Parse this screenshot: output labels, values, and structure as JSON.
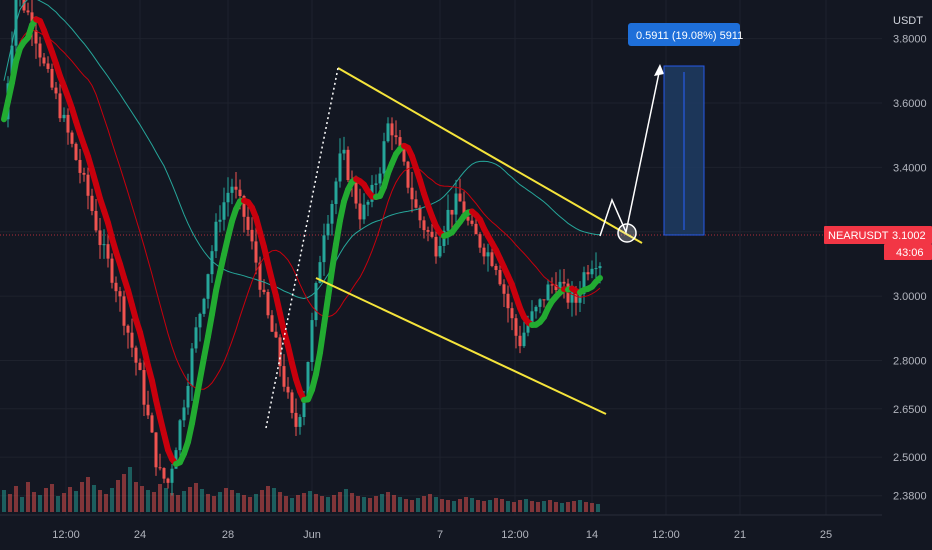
{
  "chart_data": {
    "type": "candlestick",
    "symbol": "NEARUSDT",
    "axis_unit": "USDT",
    "ylim": [
      2.32,
      3.92
    ],
    "y_ticks": [
      {
        "label": "3.8000",
        "value": 3.8
      },
      {
        "label": "3.6000",
        "value": 3.6
      },
      {
        "label": "3.4000",
        "value": 3.4
      },
      {
        "label": "3.2000",
        "value": 3.2
      },
      {
        "label": "3.0000",
        "value": 3.0
      },
      {
        "label": "2.8000",
        "value": 2.8
      },
      {
        "label": "2.6500",
        "value": 2.65
      },
      {
        "label": "2.5000",
        "value": 2.5
      },
      {
        "label": "2.3800",
        "value": 2.38
      }
    ],
    "x_ticks": [
      "12:00",
      "24",
      "28",
      "Jun",
      "7",
      "12:00",
      "14",
      "12:00",
      "21",
      "25"
    ],
    "last_price": {
      "symbol": "NEARUSDT",
      "value": "3.1002",
      "countdown": "43:06",
      "color": "#f23645"
    },
    "measure_label": "0.5911 (19.08%) 5911",
    "colors": {
      "background": "#131722",
      "grid": "#1e222d",
      "up": "#26a69a",
      "down": "#ef5350",
      "trend_up": "#22ab31",
      "trend_down": "#c8000d",
      "channel": "#f5e43b",
      "ma_slow": "#26a69a",
      "ma_slower": "#2962ff",
      "ma_fast": "#c8000d",
      "projection": "#ffffff",
      "measure_box": "#1e3a5f",
      "measure_tag": "#1e6fd9"
    },
    "price_path": [
      [
        0,
        3.55
      ],
      [
        8,
        3.95
      ],
      [
        18,
        3.85
      ],
      [
        26,
        3.7
      ],
      [
        34,
        3.6
      ],
      [
        44,
        3.45
      ],
      [
        54,
        3.3
      ],
      [
        62,
        3.15
      ],
      [
        70,
        3.05
      ],
      [
        78,
        2.9
      ],
      [
        86,
        2.75
      ],
      [
        92,
        2.6
      ],
      [
        98,
        2.45
      ],
      [
        104,
        2.42
      ],
      [
        112,
        2.62
      ],
      [
        120,
        2.85
      ],
      [
        128,
        3.05
      ],
      [
        136,
        3.25
      ],
      [
        144,
        3.35
      ],
      [
        152,
        3.25
      ],
      [
        160,
        3.1
      ],
      [
        166,
        2.95
      ],
      [
        172,
        2.85
      ],
      [
        178,
        2.72
      ],
      [
        184,
        2.58
      ],
      [
        190,
        2.7
      ],
      [
        196,
        2.95
      ],
      [
        202,
        3.2
      ],
      [
        208,
        3.3
      ],
      [
        214,
        3.45
      ],
      [
        220,
        3.35
      ],
      [
        226,
        3.25
      ],
      [
        232,
        3.3
      ],
      [
        238,
        3.4
      ],
      [
        244,
        3.55
      ],
      [
        250,
        3.45
      ],
      [
        256,
        3.35
      ],
      [
        262,
        3.25
      ],
      [
        268,
        3.2
      ],
      [
        274,
        3.15
      ],
      [
        280,
        3.25
      ],
      [
        288,
        3.3
      ],
      [
        296,
        3.2
      ],
      [
        304,
        3.15
      ],
      [
        312,
        3.1
      ],
      [
        320,
        2.95
      ],
      [
        326,
        2.85
      ],
      [
        332,
        2.92
      ],
      [
        338,
        2.96
      ],
      [
        344,
        3.02
      ],
      [
        350,
        3.05
      ],
      [
        356,
        3.0
      ],
      [
        362,
        2.98
      ],
      [
        368,
        3.08
      ],
      [
        374,
        3.12
      ],
      [
        380,
        3.1
      ]
    ],
    "volumes": [
      22,
      18,
      26,
      15,
      30,
      20,
      17,
      24,
      28,
      16,
      19,
      25,
      21,
      30,
      35,
      27,
      22,
      18,
      24,
      32,
      38,
      45,
      30,
      26,
      22,
      20,
      28,
      24,
      19,
      17,
      21,
      25,
      29,
      23,
      18,
      16,
      20,
      24,
      22,
      19,
      17,
      15,
      18,
      22,
      26,
      24,
      20,
      16,
      14,
      17,
      19,
      21,
      18,
      16,
      15,
      17,
      20,
      23,
      19,
      16,
      15,
      14,
      16,
      18,
      20,
      17,
      15,
      13,
      12,
      14,
      16,
      18,
      15,
      13,
      12,
      11,
      13,
      15,
      14,
      12,
      11,
      12,
      14,
      13,
      11,
      10,
      12,
      13,
      11,
      10,
      11,
      12,
      10,
      9,
      10,
      11,
      12,
      10,
      9,
      8
    ]
  }
}
